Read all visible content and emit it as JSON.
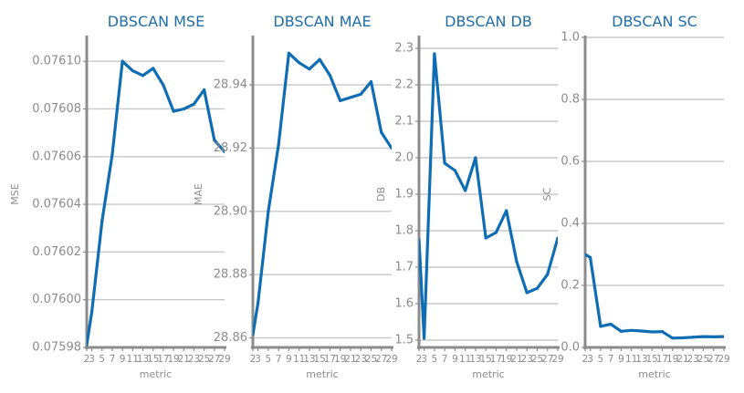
{
  "colors": {
    "line": "#0f6db3",
    "title": "#1f6ea8",
    "axis": "#8c8c8c",
    "grid": "#c8c8c8"
  },
  "chart_data": [
    {
      "type": "line",
      "title": "DBSCAN MSE",
      "xlabel": "metric",
      "ylabel": "MSE",
      "x": [
        2,
        3,
        5,
        7,
        9,
        11,
        13,
        15,
        17,
        19,
        21,
        23,
        25,
        27,
        29
      ],
      "xticks": [
        2,
        3,
        5,
        7,
        9,
        11,
        13,
        15,
        17,
        19,
        21,
        23,
        25,
        27,
        29
      ],
      "xtick_labels": [
        "2",
        "3",
        "5",
        "7",
        "9",
        "11",
        "13",
        "15",
        "17",
        "19",
        "21",
        "23",
        "25",
        "27",
        "29"
      ],
      "series": [
        {
          "values": [
            0.075981,
            0.075995,
            0.076033,
            0.076061,
            0.0761,
            0.076096,
            0.076094,
            0.076097,
            0.07609,
            0.076079,
            0.07608,
            0.076082,
            0.076088,
            0.076067,
            0.076062
          ]
        }
      ],
      "xlim": [
        2,
        29
      ],
      "ylim": [
        0.07598,
        0.07611
      ],
      "yticks": [
        0.07598,
        0.076,
        0.07602,
        0.07604,
        0.07606,
        0.07608,
        0.0761
      ],
      "ytick_labels": [
        "0.07598",
        "0.07600",
        "0.07602",
        "0.07604",
        "0.07606",
        "0.07608",
        "0.07610"
      ],
      "grid": "horizontal"
    },
    {
      "type": "line",
      "title": "DBSCAN MAE",
      "xlabel": "metric",
      "ylabel": "MAE",
      "x": [
        2,
        3,
        5,
        7,
        9,
        11,
        13,
        15,
        17,
        19,
        21,
        23,
        25,
        27,
        29
      ],
      "xticks": [
        2,
        3,
        5,
        7,
        9,
        11,
        13,
        15,
        17,
        19,
        21,
        23,
        25,
        27,
        29
      ],
      "xtick_labels": [
        "2",
        "3",
        "5",
        "7",
        "9",
        "11",
        "13",
        "15",
        "17",
        "19",
        "21",
        "23",
        "25",
        "27",
        "29"
      ],
      "series": [
        {
          "values": [
            28.861,
            28.871,
            28.9,
            28.921,
            28.95,
            28.947,
            28.945,
            28.948,
            28.943,
            28.935,
            28.936,
            28.937,
            28.941,
            28.925,
            28.92
          ]
        }
      ],
      "xlim": [
        2,
        29
      ],
      "ylim": [
        28.857,
        28.955
      ],
      "yticks": [
        28.86,
        28.88,
        28.9,
        28.92,
        28.94
      ],
      "ytick_labels": [
        "28.86",
        "28.88",
        "28.90",
        "28.92",
        "28.94"
      ],
      "grid": "horizontal"
    },
    {
      "type": "line",
      "title": "DBSCAN DB",
      "xlabel": "metric",
      "ylabel": "DB",
      "x": [
        2,
        3,
        5,
        7,
        9,
        11,
        13,
        15,
        17,
        19,
        21,
        23,
        25,
        27,
        29
      ],
      "xticks": [
        2,
        3,
        5,
        7,
        9,
        11,
        13,
        15,
        17,
        19,
        21,
        23,
        25,
        27,
        29
      ],
      "xtick_labels": [
        "2",
        "3",
        "5",
        "7",
        "9",
        "11",
        "13",
        "15",
        "17",
        "19",
        "21",
        "23",
        "25",
        "27",
        "29"
      ],
      "series": [
        {
          "values": [
            1.775,
            1.505,
            2.285,
            1.985,
            1.965,
            1.91,
            2.0,
            1.78,
            1.795,
            1.855,
            1.715,
            1.63,
            1.642,
            1.68,
            1.78
          ]
        }
      ],
      "xlim": [
        2,
        29
      ],
      "ylim": [
        1.48,
        2.33
      ],
      "yticks": [
        1.5,
        1.6,
        1.7,
        1.8,
        1.9,
        2.0,
        2.1,
        2.2,
        2.3
      ],
      "ytick_labels": [
        "1.5",
        "1.6",
        "1.7",
        "1.8",
        "1.9",
        "2.0",
        "2.1",
        "2.2",
        "2.3"
      ],
      "grid": "horizontal"
    },
    {
      "type": "line",
      "title": "DBSCAN SC",
      "xlabel": "metric",
      "ylabel": "SC",
      "x": [
        2,
        3,
        5,
        7,
        9,
        11,
        13,
        15,
        17,
        19,
        21,
        23,
        25,
        27,
        29
      ],
      "xticks": [
        2,
        3,
        5,
        7,
        9,
        11,
        13,
        15,
        17,
        19,
        21,
        23,
        25,
        27,
        29
      ],
      "xtick_labels": [
        "2",
        "3",
        "5",
        "7",
        "9",
        "11",
        "13",
        "15",
        "17",
        "19",
        "21",
        "23",
        "25",
        "27",
        "29"
      ],
      "series": [
        {
          "values": [
            0.3,
            0.29,
            0.068,
            0.075,
            0.052,
            0.055,
            0.053,
            0.05,
            0.051,
            0.03,
            0.031,
            0.033,
            0.035,
            0.034,
            0.035
          ]
        }
      ],
      "xlim": [
        2,
        29
      ],
      "ylim": [
        0.0,
        1.0
      ],
      "yticks": [
        0.0,
        0.2,
        0.4,
        0.6,
        0.8,
        1.0
      ],
      "ytick_labels": [
        "0.0",
        "0.2",
        "0.4",
        "0.6",
        "0.8",
        "1.0"
      ],
      "grid": "horizontal"
    }
  ]
}
